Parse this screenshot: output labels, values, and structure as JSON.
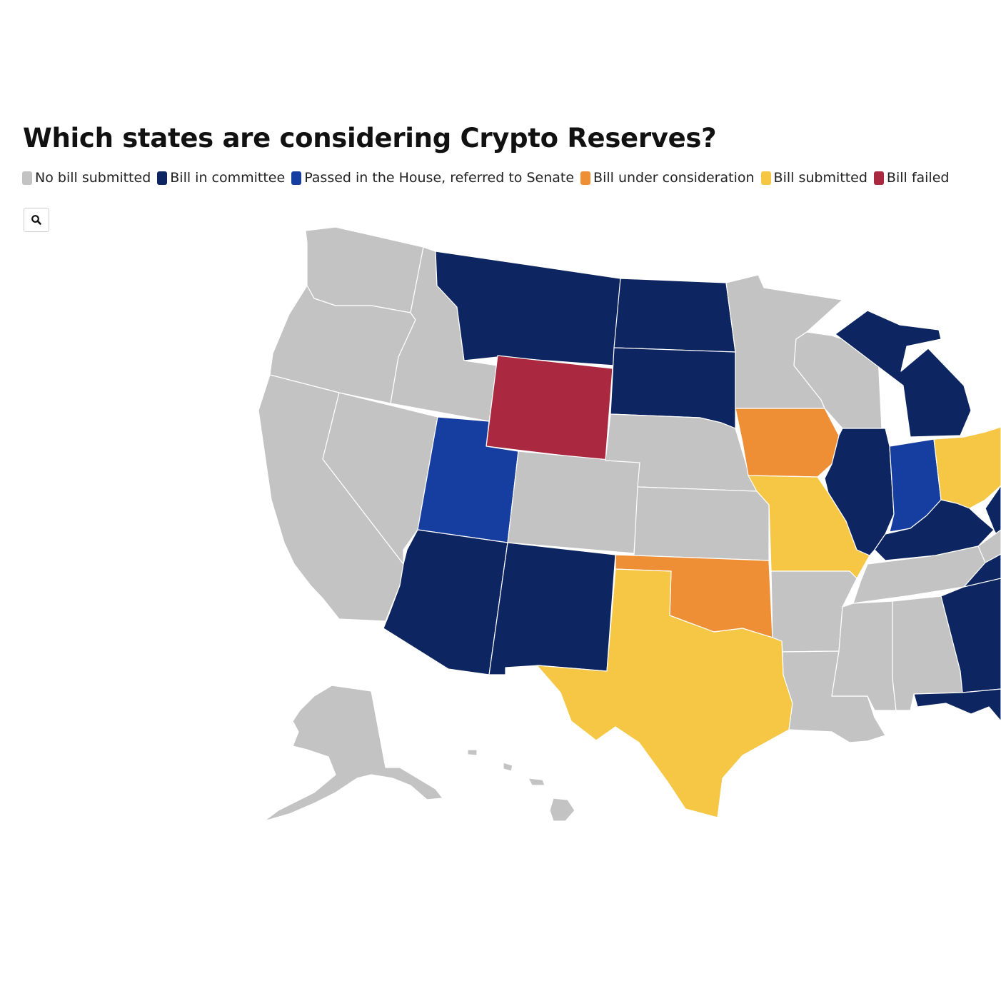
{
  "title": "Which states are considering Crypto Reserves?",
  "legend": [
    {
      "key": "none",
      "label": "No bill submitted",
      "color": "#c3c3c3"
    },
    {
      "key": "committee",
      "label": "Bill in committee",
      "color": "#0d2560"
    },
    {
      "key": "passed",
      "label": "Passed in the House, referred to Senate",
      "color": "#163ea0"
    },
    {
      "key": "consideration",
      "label": "Bill under consideration",
      "color": "#ef8f35"
    },
    {
      "key": "submitted",
      "label": "Bill submitted",
      "color": "#f6c745"
    },
    {
      "key": "failed",
      "label": "Bill failed",
      "color": "#aa2840"
    }
  ],
  "search": {
    "icon": "search-icon"
  },
  "states": [
    {
      "id": "WA",
      "status": "none"
    },
    {
      "id": "OR",
      "status": "none"
    },
    {
      "id": "CA",
      "status": "none"
    },
    {
      "id": "ID",
      "status": "none"
    },
    {
      "id": "NV",
      "status": "none"
    },
    {
      "id": "MT",
      "status": "committee"
    },
    {
      "id": "WY",
      "status": "failed"
    },
    {
      "id": "UT",
      "status": "passed"
    },
    {
      "id": "AZ",
      "status": "committee"
    },
    {
      "id": "CO",
      "status": "none"
    },
    {
      "id": "NM",
      "status": "committee"
    },
    {
      "id": "ND",
      "status": "committee"
    },
    {
      "id": "SD",
      "status": "committee"
    },
    {
      "id": "NE",
      "status": "none"
    },
    {
      "id": "KS",
      "status": "none"
    },
    {
      "id": "OK",
      "status": "consideration"
    },
    {
      "id": "TX",
      "status": "submitted"
    },
    {
      "id": "MN",
      "status": "none"
    },
    {
      "id": "IA",
      "status": "consideration"
    },
    {
      "id": "MO",
      "status": "submitted"
    },
    {
      "id": "AR",
      "status": "none"
    },
    {
      "id": "LA",
      "status": "none"
    },
    {
      "id": "WI",
      "status": "none"
    },
    {
      "id": "IL",
      "status": "committee"
    },
    {
      "id": "MI",
      "status": "committee"
    },
    {
      "id": "IN",
      "status": "passed"
    },
    {
      "id": "OH",
      "status": "submitted"
    },
    {
      "id": "KY",
      "status": "committee"
    },
    {
      "id": "TN",
      "status": "none"
    },
    {
      "id": "MS",
      "status": "none"
    },
    {
      "id": "AL",
      "status": "none"
    },
    {
      "id": "GA",
      "status": "committee"
    },
    {
      "id": "FL",
      "status": "committee"
    },
    {
      "id": "WV",
      "status": "committee"
    },
    {
      "id": "NC",
      "status": "committee"
    },
    {
      "id": "SC",
      "status": "none"
    },
    {
      "id": "VA",
      "status": "none"
    },
    {
      "id": "AK",
      "status": "none"
    },
    {
      "id": "HI",
      "status": "none"
    }
  ]
}
